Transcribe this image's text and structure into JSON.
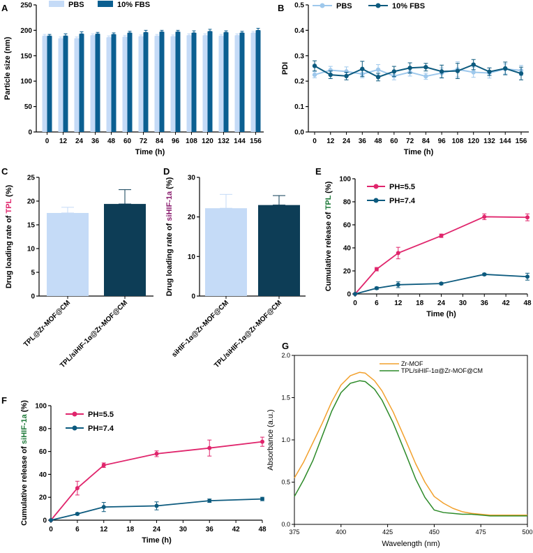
{
  "panel_letters": {
    "A": "A",
    "B": "B",
    "C": "C",
    "D": "D",
    "E": "E",
    "F": "F",
    "G": "G"
  },
  "colors": {
    "light": "#c5dbf7",
    "dark": "#0b5f91",
    "navy": "#0d3d56",
    "pink": "#e0256c",
    "lineLight": "#9ec8ec",
    "lineDark": "#0c5a7e",
    "orange": "#f2a02c",
    "green": "#2c8a28"
  },
  "chart_data": [
    {
      "id": "A",
      "type": "bar",
      "categories": [
        "0",
        "12",
        "24",
        "36",
        "48",
        "60",
        "72",
        "84",
        "96",
        "108",
        "120",
        "132",
        "144",
        "156"
      ],
      "series": [
        {
          "name": "PBS",
          "values": [
            189,
            184,
            184,
            190,
            186,
            187,
            188,
            189,
            188,
            190,
            190,
            189,
            190,
            195
          ],
          "errors": [
            3,
            3,
            3,
            3,
            3,
            3,
            3,
            3,
            3,
            3,
            3,
            3,
            3,
            3
          ]
        },
        {
          "name": "10% FBS",
          "values": [
            189,
            189,
            193,
            193,
            192,
            195,
            196,
            197,
            197,
            195,
            198,
            196,
            195,
            200
          ],
          "errors": [
            3,
            4,
            4,
            3,
            3,
            3,
            4,
            3,
            3,
            4,
            4,
            3,
            3,
            4
          ]
        }
      ],
      "xlabel": "Time (h)",
      "ylabel": "Particle size (nm)",
      "ylim": [
        0,
        250
      ],
      "yticks": [
        0,
        50,
        100,
        150,
        200,
        250
      ]
    },
    {
      "id": "B",
      "type": "line",
      "x": [
        "0",
        "12",
        "24",
        "36",
        "48",
        "60",
        "72",
        "84",
        "96",
        "108",
        "120",
        "132",
        "144",
        "156"
      ],
      "series": [
        {
          "name": "PBS",
          "values": [
            0.225,
            0.243,
            0.238,
            0.228,
            0.245,
            0.22,
            0.235,
            0.219,
            0.232,
            0.246,
            0.235,
            0.232,
            0.248,
            0.242
          ],
          "errors": [
            0.012,
            0.015,
            0.018,
            0.015,
            0.02,
            0.015,
            0.015,
            0.012,
            0.02,
            0.03,
            0.02,
            0.02,
            0.02,
            0.02
          ]
        },
        {
          "name": "10% FBS",
          "values": [
            0.26,
            0.225,
            0.22,
            0.248,
            0.216,
            0.238,
            0.252,
            0.255,
            0.238,
            0.24,
            0.265,
            0.237,
            0.25,
            0.23
          ],
          "errors": [
            0.02,
            0.015,
            0.015,
            0.03,
            0.015,
            0.02,
            0.02,
            0.015,
            0.025,
            0.03,
            0.02,
            0.015,
            0.025,
            0.025
          ]
        }
      ],
      "xlabel": "Time (h)",
      "ylabel": "PDI",
      "ylim": [
        0,
        0.5
      ],
      "yticks": [
        "0.0",
        "0.1",
        "0.2",
        "0.3",
        "0.4",
        "0.5"
      ]
    },
    {
      "id": "C",
      "type": "bar",
      "categories": [
        "TPL@Zr-MOF@CM",
        "TPL/siHIF-1α@Zr-MOF@CM"
      ],
      "values": [
        17.5,
        19.4
      ],
      "errors": [
        1.2,
        3.0
      ],
      "ylabel_parts": [
        "Drug loading rate of ",
        "TPL",
        " (%)"
      ],
      "ylim": [
        0,
        25
      ],
      "yticks": [
        0,
        5,
        10,
        15,
        20,
        25
      ]
    },
    {
      "id": "D",
      "type": "bar",
      "categories": [
        "siHIF-1α@Zr-MOF@CM",
        "TPL/siHIF-1α@Zr-MOF@CM"
      ],
      "values": [
        22.2,
        23.0
      ],
      "errors": [
        3.5,
        2.4
      ],
      "ylabel_parts": [
        "Drug loading rate of ",
        "siHIF-1a",
        " (%)"
      ],
      "ylim": [
        0,
        30
      ],
      "yticks": [
        0,
        10,
        20,
        30
      ]
    },
    {
      "id": "E",
      "type": "line",
      "x": [
        0,
        6,
        12,
        24,
        36,
        48
      ],
      "series": [
        {
          "name": "PH=5.5",
          "values": [
            0,
            21.5,
            35.5,
            50.5,
            67,
            66.5
          ],
          "errors": [
            0,
            1.5,
            5,
            1.5,
            2.5,
            3
          ]
        },
        {
          "name": "PH=7.4",
          "values": [
            0,
            5,
            8,
            9,
            17,
            15
          ],
          "errors": [
            0,
            1,
            2.5,
            1,
            1,
            3
          ]
        }
      ],
      "xlabel": "Time (h)",
      "ylabel_parts": [
        "Cumulative release of ",
        "TPL",
        " (%)"
      ],
      "xlim": [
        0,
        48
      ],
      "xticks": [
        0,
        6,
        12,
        18,
        24,
        30,
        36,
        42,
        48
      ],
      "ylim": [
        0,
        100
      ],
      "yticks": [
        0,
        20,
        40,
        60,
        80,
        100
      ]
    },
    {
      "id": "F",
      "type": "line",
      "x": [
        0,
        6,
        12,
        24,
        36,
        48
      ],
      "series": [
        {
          "name": "PH=5.5",
          "values": [
            0,
            28,
            48,
            58,
            63,
            68.5
          ],
          "errors": [
            0,
            6,
            2,
            2.5,
            7,
            4
          ]
        },
        {
          "name": "PH=7.4",
          "values": [
            0,
            5.5,
            11.5,
            12.5,
            17,
            18.5
          ],
          "errors": [
            0,
            1,
            4,
            3.5,
            1.5,
            1.5
          ]
        }
      ],
      "xlabel": "Time (h)",
      "ylabel_parts": [
        "Cumulative release of ",
        "siHIF-1a",
        " (%)"
      ],
      "xlim": [
        0,
        48
      ],
      "xticks": [
        0,
        6,
        12,
        18,
        24,
        30,
        36,
        42,
        48
      ],
      "ylim": [
        0,
        100
      ],
      "yticks": [
        0,
        20,
        40,
        60,
        80,
        100
      ]
    },
    {
      "id": "G",
      "type": "line",
      "series": [
        {
          "name": "Zr-MOF",
          "x": [
            375,
            380,
            385,
            390,
            395,
            400,
            405,
            410,
            413,
            418,
            422,
            428,
            435,
            440,
            445,
            450,
            455,
            460,
            465,
            470,
            475,
            480,
            490,
            500
          ],
          "values": [
            0.55,
            0.74,
            0.97,
            1.2,
            1.45,
            1.65,
            1.76,
            1.8,
            1.79,
            1.7,
            1.58,
            1.33,
            0.98,
            0.72,
            0.5,
            0.33,
            0.25,
            0.19,
            0.15,
            0.13,
            0.12,
            0.11,
            0.11,
            0.11
          ]
        },
        {
          "name": "TPL/siHIF-1α@Zr-MOF@CM",
          "x": [
            375,
            380,
            385,
            390,
            395,
            400,
            405,
            410,
            413,
            418,
            422,
            428,
            435,
            440,
            445,
            450,
            455,
            460,
            465,
            470,
            475,
            480,
            490,
            500
          ],
          "values": [
            0.33,
            0.53,
            0.76,
            1.05,
            1.34,
            1.56,
            1.67,
            1.7,
            1.69,
            1.6,
            1.47,
            1.2,
            0.82,
            0.54,
            0.32,
            0.17,
            0.14,
            0.13,
            0.12,
            0.12,
            0.11,
            0.1,
            0.1,
            0.1
          ]
        }
      ],
      "xlabel": "Wavelength (nm)",
      "ylabel": "Absorbance (a.u.)",
      "xlim": [
        375,
        500
      ],
      "xticks": [
        375,
        400,
        425,
        450,
        475,
        500
      ],
      "ylim": [
        0,
        2.0
      ],
      "yticks": [
        "0.0",
        "0.5",
        "1.0",
        "1.5",
        "2.0"
      ]
    }
  ]
}
